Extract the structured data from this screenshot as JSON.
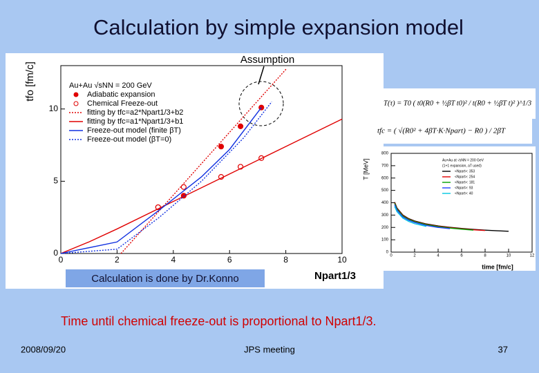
{
  "slide": {
    "title": "Calculation by simple expansion model",
    "callout": "Assumption",
    "credit": "Calculation is done by Dr.Konno",
    "conclusion": "Time until chemical freeze-out is proportional to Npart1/3.",
    "date": "2008/09/20",
    "event": "JPS meeting",
    "page": "37",
    "formulas": [
      "T(τ) = T0 ( t0(R0 + ½βT t0)² / t(R0 + ½βT t)² )^1/3",
      "tfc = ( √(R0² + 4βT·K·Npart) − R0 ) / 2βT"
    ]
  },
  "chart_data": [
    {
      "type": "line",
      "y_label": "tfo [fm/c]",
      "x_label": "Npart1/3",
      "legend_title": "Au+Au √sNN = 200 GeV",
      "xlim": [
        0,
        10
      ],
      "ylim": [
        0,
        13
      ],
      "xticks": [
        0,
        2,
        4,
        6,
        8,
        10
      ],
      "yticks": [
        0,
        5,
        10
      ],
      "series": [
        {
          "name": "Adiabatic expansion",
          "color": "#e00000",
          "marker": "filled",
          "x": [
            3.46,
            4.37,
            5.7,
            6.39,
            7.13
          ],
          "values": [
            3.2,
            4.0,
            7.4,
            8.8,
            10.1
          ]
        },
        {
          "name": "Chemical Freeze-out",
          "color": "#e00000",
          "marker": "open",
          "x": [
            3.46,
            4.37,
            5.7,
            6.39,
            7.13
          ],
          "values": [
            3.2,
            4.6,
            5.3,
            6.0,
            6.6
          ]
        },
        {
          "name": "fitting by tfc=a2*Npart1/3+b2",
          "color": "#e00000",
          "dash": "dotted",
          "x": [
            2.14,
            8.03
          ],
          "values": [
            0,
            12.8
          ]
        },
        {
          "name": "fitting by tfc=a1*Npart1/3+b1",
          "color": "#e00000",
          "dash": "solid",
          "x": [
            0,
            1,
            2,
            4,
            6,
            8,
            10
          ],
          "values": [
            0,
            0.8,
            1.7,
            3.6,
            5.5,
            7.4,
            9.3
          ]
        },
        {
          "name": "Freeze-out model (finite βT)",
          "color": "#1030e0",
          "dash": "solid",
          "x": [
            0,
            2,
            3.5,
            5,
            6,
            7.13
          ],
          "values": [
            0,
            0.8,
            3.0,
            5.3,
            7.2,
            10.1
          ]
        },
        {
          "name": "Freeze-out model (βT=0)",
          "color": "#1030e0",
          "dash": "dotted",
          "x": [
            0,
            2,
            3.5,
            5,
            6.5,
            7.5
          ],
          "values": [
            0,
            0.3,
            2.5,
            5.0,
            8.0,
            10.5
          ]
        }
      ]
    },
    {
      "type": "line",
      "y_label": "T [MeV]",
      "x_label": "time [fm/c]",
      "legend_title": "Au+Au at √sNN = 200 GeV",
      "legend_subtitle": "(1+1 expansion, aT used)",
      "xlim": [
        0,
        12
      ],
      "ylim": [
        0,
        800
      ],
      "xticks": [
        0,
        2,
        4,
        6,
        8,
        10,
        12
      ],
      "yticks": [
        0,
        100,
        200,
        300,
        400,
        500,
        600,
        700,
        800
      ],
      "x": [
        0.3,
        0.5,
        1,
        1.5,
        2,
        3,
        4,
        5,
        6,
        7,
        8,
        9,
        10
      ],
      "series": [
        {
          "name": "<Npart>: 353",
          "color": "#000000",
          "values": [
            405,
            357,
            300,
            271,
            252,
            228,
            212,
            201,
            192,
            184,
            178,
            173,
            169
          ]
        },
        {
          "name": "<Npart>: 254",
          "color": "#e00000",
          "values": [
            400,
            352,
            296,
            267,
            249,
            225,
            209,
            198,
            189,
            181,
            175,
            null,
            null
          ]
        },
        {
          "name": "<Npart>: 181",
          "color": "#00a000",
          "values": [
            395,
            348,
            292,
            264,
            246,
            222,
            206,
            195,
            186,
            178,
            null,
            null,
            null
          ]
        },
        {
          "name": "<Npart>: 93",
          "color": "#2040ff",
          "values": [
            385,
            340,
            285,
            258,
            240,
            216,
            200,
            190,
            null,
            null,
            null,
            null,
            null
          ]
        },
        {
          "name": "<Npart>: 40",
          "color": "#00c8e0",
          "values": [
            370,
            327,
            275,
            248,
            230,
            208,
            null,
            null,
            null,
            null,
            null,
            null,
            null
          ]
        }
      ]
    }
  ]
}
